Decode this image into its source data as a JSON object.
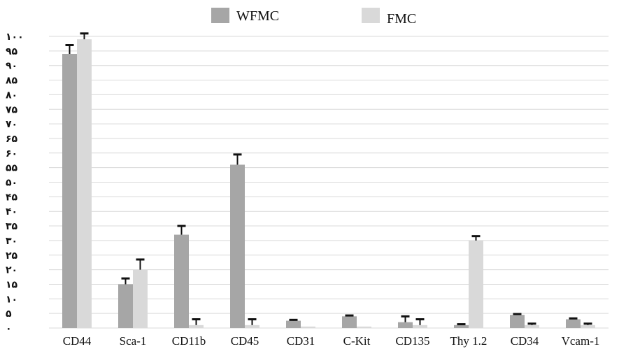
{
  "chart_data": {
    "type": "bar",
    "categories": [
      "CD44",
      "Sca-1",
      "CD11b",
      "CD45",
      "CD31",
      "C-Kit",
      "CD135",
      "Thy 1.2",
      "CD34",
      "Vcam-1"
    ],
    "series": [
      {
        "name": "WFMC",
        "color": "#a6a6a6",
        "values": [
          94,
          15,
          32,
          56,
          2.5,
          4,
          2,
          1,
          4.5,
          3
        ],
        "errors": [
          3,
          2,
          3,
          3.5,
          0.3,
          0.3,
          2,
          0.3,
          0.3,
          0.3
        ]
      },
      {
        "name": "FMC",
        "color": "#d9d9d9",
        "values": [
          99,
          20,
          1,
          1,
          0.5,
          0.5,
          1,
          30,
          1,
          1
        ],
        "errors": [
          2,
          3.5,
          2,
          2,
          0,
          0,
          2,
          1.5,
          0.5,
          0.5
        ]
      }
    ],
    "ylim": [
      0,
      100
    ],
    "yticks": [
      {
        "value": 0,
        "label": "۰"
      },
      {
        "value": 5,
        "label": "۵"
      },
      {
        "value": 10,
        "label": "۱۰"
      },
      {
        "value": 15,
        "label": "۱۵"
      },
      {
        "value": 20,
        "label": "۲۰"
      },
      {
        "value": 25,
        "label": "۲۵"
      },
      {
        "value": 30,
        "label": "۳۰"
      },
      {
        "value": 35,
        "label": "۳۵"
      },
      {
        "value": 40,
        "label": "۴۰"
      },
      {
        "value": 45,
        "label": "۴۵"
      },
      {
        "value": 50,
        "label": "۵۰"
      },
      {
        "value": 55,
        "label": "۵۵"
      },
      {
        "value": 60,
        "label": "۶۰"
      },
      {
        "value": 65,
        "label": "۶۵"
      },
      {
        "value": 70,
        "label": "۷۰"
      },
      {
        "value": 75,
        "label": "۷۵"
      },
      {
        "value": 80,
        "label": "۸۰"
      },
      {
        "value": 85,
        "label": "۸۵"
      },
      {
        "value": 90,
        "label": "۹۰"
      },
      {
        "value": 95,
        "label": "۹۵"
      },
      {
        "value": 100,
        "label": "۱۰۰"
      }
    ],
    "grid": true,
    "gridline_color": "#d9d9d9",
    "errorbar_color": "#111111",
    "legend_position": "top-center"
  }
}
